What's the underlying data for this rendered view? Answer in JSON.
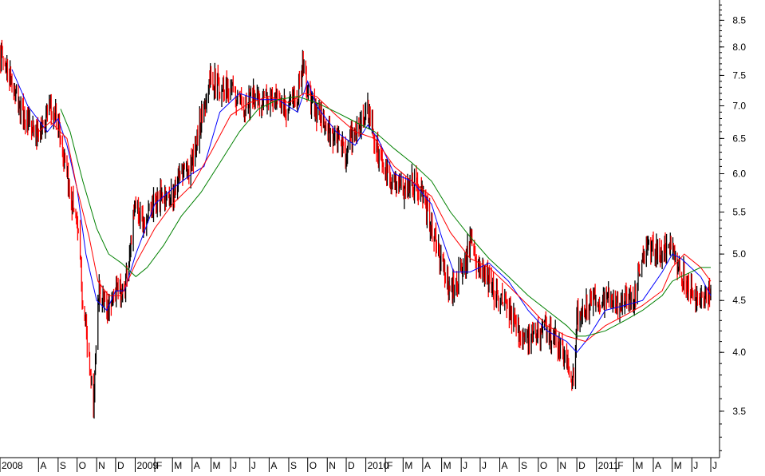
{
  "chart_data": {
    "type": "line",
    "title": "",
    "xlabel": "",
    "ylabel": "",
    "y_scale": "log",
    "ylim": [
      3.15,
      8.9
    ],
    "xlim": [
      "2008-06-01",
      "2011-07-06"
    ],
    "grid": false,
    "colors": {
      "price_up": "#000000",
      "price_down": "#ff0000",
      "ma_fast": "#0000ff",
      "ma_mid": "#ff0000",
      "ma_slow": "#008000",
      "axis": "#000000"
    },
    "y_ticks": [
      {
        "value": 3.5,
        "label": "3.5"
      },
      {
        "value": 4.0,
        "label": "4.0"
      },
      {
        "value": 4.5,
        "label": "4.5"
      },
      {
        "value": 5.0,
        "label": "5.0"
      },
      {
        "value": 5.5,
        "label": "5.5"
      },
      {
        "value": 6.0,
        "label": "6.0"
      },
      {
        "value": 6.5,
        "label": "6.5"
      },
      {
        "value": 7.0,
        "label": "7.0"
      },
      {
        "value": 7.5,
        "label": "7.5"
      },
      {
        "value": 8.0,
        "label": "8.0"
      },
      {
        "value": 8.5,
        "label": "8.5"
      }
    ],
    "x_ticks": [
      {
        "date": "2008-06-01",
        "label": "2008"
      },
      {
        "date": "2008-08-01",
        "label": "A"
      },
      {
        "date": "2008-09-01",
        "label": "S"
      },
      {
        "date": "2008-10-01",
        "label": "O"
      },
      {
        "date": "2008-11-01",
        "label": "N"
      },
      {
        "date": "2008-12-01",
        "label": "D"
      },
      {
        "date": "2009-01-01",
        "label": "2009"
      },
      {
        "date": "2009-02-01",
        "label": "F"
      },
      {
        "date": "2009-03-01",
        "label": "M"
      },
      {
        "date": "2009-04-01",
        "label": "A"
      },
      {
        "date": "2009-05-01",
        "label": "M"
      },
      {
        "date": "2009-06-01",
        "label": "J"
      },
      {
        "date": "2009-07-01",
        "label": "J"
      },
      {
        "date": "2009-08-01",
        "label": "A"
      },
      {
        "date": "2009-09-01",
        "label": "S"
      },
      {
        "date": "2009-10-01",
        "label": "O"
      },
      {
        "date": "2009-11-01",
        "label": "N"
      },
      {
        "date": "2009-12-01",
        "label": "D"
      },
      {
        "date": "2010-01-01",
        "label": "2010"
      },
      {
        "date": "2010-02-01",
        "label": "F"
      },
      {
        "date": "2010-03-01",
        "label": "M"
      },
      {
        "date": "2010-04-01",
        "label": "A"
      },
      {
        "date": "2010-05-01",
        "label": "M"
      },
      {
        "date": "2010-06-01",
        "label": "J"
      },
      {
        "date": "2010-07-01",
        "label": "J"
      },
      {
        "date": "2010-08-01",
        "label": "A"
      },
      {
        "date": "2010-09-01",
        "label": "S"
      },
      {
        "date": "2010-10-01",
        "label": "O"
      },
      {
        "date": "2010-11-01",
        "label": "N"
      },
      {
        "date": "2010-12-01",
        "label": "D"
      },
      {
        "date": "2011-01-01",
        "label": "2011"
      },
      {
        "date": "2011-02-01",
        "label": "F"
      },
      {
        "date": "2011-03-01",
        "label": "M"
      },
      {
        "date": "2011-04-01",
        "label": "A"
      },
      {
        "date": "2011-05-01",
        "label": "M"
      },
      {
        "date": "2011-06-01",
        "label": "J"
      },
      {
        "date": "2011-07-01",
        "label": "J"
      }
    ],
    "price_series": {
      "name": "",
      "style": "daily high-low bars, black on up days, red on down days",
      "x": [
        "2008-06-02",
        "2008-06-16",
        "2008-07-01",
        "2008-07-15",
        "2008-08-01",
        "2008-08-15",
        "2008-09-01",
        "2008-09-15",
        "2008-10-01",
        "2008-10-10",
        "2008-10-20",
        "2008-10-27",
        "2008-11-03",
        "2008-11-17",
        "2008-12-01",
        "2008-12-15",
        "2009-01-02",
        "2009-01-15",
        "2009-02-01",
        "2009-02-15",
        "2009-03-01",
        "2009-03-15",
        "2009-04-01",
        "2009-04-15",
        "2009-05-01",
        "2009-05-15",
        "2009-06-01",
        "2009-06-15",
        "2009-07-01",
        "2009-07-15",
        "2009-08-01",
        "2009-08-15",
        "2009-09-01",
        "2009-09-15",
        "2009-09-25",
        "2009-10-01",
        "2009-10-15",
        "2009-11-01",
        "2009-11-15",
        "2009-12-01",
        "2009-12-15",
        "2010-01-04",
        "2010-01-15",
        "2010-02-01",
        "2010-02-15",
        "2010-03-01",
        "2010-03-15",
        "2010-04-01",
        "2010-04-15",
        "2010-05-01",
        "2010-05-15",
        "2010-06-01",
        "2010-06-15",
        "2010-07-01",
        "2010-07-15",
        "2010-08-01",
        "2010-08-15",
        "2010-09-01",
        "2010-09-15",
        "2010-10-01",
        "2010-10-15",
        "2010-11-01",
        "2010-11-15",
        "2010-11-26",
        "2010-12-01",
        "2010-12-15",
        "2011-01-03",
        "2011-01-15",
        "2011-02-01",
        "2011-02-15",
        "2011-03-01",
        "2011-03-15",
        "2011-04-01",
        "2011-04-15",
        "2011-05-01",
        "2011-05-15",
        "2011-06-01",
        "2011-06-15",
        "2011-07-01"
      ],
      "close": [
        7.9,
        7.5,
        7.0,
        6.7,
        6.5,
        6.9,
        6.8,
        5.9,
        5.4,
        4.5,
        3.9,
        3.5,
        4.6,
        4.4,
        4.6,
        4.6,
        5.6,
        5.4,
        5.6,
        5.7,
        5.7,
        6.0,
        6.1,
        6.8,
        7.5,
        7.3,
        7.3,
        7.0,
        7.1,
        7.1,
        7.1,
        7.0,
        7.0,
        7.2,
        7.7,
        7.2,
        6.9,
        6.6,
        6.5,
        6.3,
        6.6,
        6.9,
        6.5,
        6.0,
        5.9,
        5.8,
        5.9,
        5.7,
        5.3,
        4.9,
        4.6,
        4.8,
        5.1,
        4.8,
        4.7,
        4.5,
        4.4,
        4.2,
        4.1,
        4.2,
        4.2,
        4.1,
        3.9,
        3.8,
        4.3,
        4.45,
        4.5,
        4.5,
        4.45,
        4.5,
        4.5,
        5.0,
        5.1,
        5.0,
        5.1,
        4.8,
        4.6,
        4.5,
        4.6
      ]
    },
    "series": [
      {
        "name": "",
        "color": "#0000ff",
        "x": [
          "2008-06-20",
          "2008-07-15",
          "2008-08-15",
          "2008-09-01",
          "2008-09-15",
          "2008-10-01",
          "2008-10-15",
          "2008-11-01",
          "2008-11-17",
          "2008-12-01",
          "2008-12-15",
          "2009-01-02",
          "2009-02-01",
          "2009-03-01",
          "2009-04-01",
          "2009-04-20",
          "2009-05-15",
          "2009-06-15",
          "2009-07-15",
          "2009-08-15",
          "2009-09-15",
          "2009-10-01",
          "2009-10-15",
          "2009-11-15",
          "2009-12-15",
          "2010-01-04",
          "2010-01-20",
          "2010-02-15",
          "2010-03-15",
          "2010-04-15",
          "2010-05-01",
          "2010-05-20",
          "2010-06-15",
          "2010-07-15",
          "2010-08-15",
          "2010-09-15",
          "2010-10-15",
          "2010-11-15",
          "2010-12-01",
          "2010-12-15",
          "2011-01-15",
          "2011-02-15",
          "2011-03-15",
          "2011-04-15",
          "2011-05-01",
          "2011-05-15",
          "2011-06-15",
          "2011-07-01"
        ],
        "values": [
          7.6,
          7.0,
          6.6,
          6.8,
          6.4,
          5.8,
          5.0,
          4.5,
          4.4,
          4.6,
          4.6,
          5.0,
          5.6,
          5.8,
          6.0,
          6.1,
          6.9,
          7.2,
          7.1,
          7.1,
          6.9,
          7.4,
          7.0,
          6.6,
          6.4,
          6.7,
          6.5,
          6.0,
          5.9,
          5.6,
          5.2,
          4.8,
          4.8,
          4.9,
          4.7,
          4.4,
          4.2,
          4.1,
          4.0,
          4.1,
          4.4,
          4.45,
          4.5,
          4.8,
          5.0,
          4.95,
          4.75,
          4.55
        ]
      },
      {
        "name": "",
        "color": "#ff0000",
        "x": [
          "2008-08-01",
          "2008-08-20",
          "2008-09-15",
          "2008-10-01",
          "2008-10-20",
          "2008-11-03",
          "2008-11-20",
          "2008-12-10",
          "2009-01-02",
          "2009-02-01",
          "2009-03-01",
          "2009-04-01",
          "2009-05-01",
          "2009-06-01",
          "2009-07-01",
          "2009-08-01",
          "2009-09-01",
          "2009-09-25",
          "2009-10-15",
          "2009-11-15",
          "2009-12-15",
          "2010-01-15",
          "2010-02-15",
          "2010-03-15",
          "2010-04-15",
          "2010-05-15",
          "2010-06-15",
          "2010-07-15",
          "2010-08-15",
          "2010-09-15",
          "2010-10-15",
          "2010-11-15",
          "2010-12-15",
          "2011-01-15",
          "2011-02-15",
          "2011-03-15",
          "2011-04-15",
          "2011-05-01",
          "2011-05-20",
          "2011-06-15",
          "2011-07-01"
        ],
        "values": [
          6.6,
          6.75,
          6.5,
          5.8,
          5.2,
          4.7,
          4.55,
          4.55,
          4.9,
          5.3,
          5.6,
          5.85,
          6.3,
          6.85,
          7.05,
          7.15,
          7.05,
          7.2,
          7.15,
          6.85,
          6.6,
          6.5,
          6.1,
          5.9,
          5.7,
          5.25,
          4.95,
          4.85,
          4.65,
          4.45,
          4.25,
          4.15,
          4.1,
          4.25,
          4.35,
          4.45,
          4.6,
          4.85,
          5.0,
          4.85,
          4.7
        ]
      },
      {
        "name": "",
        "color": "#008000",
        "x": [
          "2008-09-05",
          "2008-09-20",
          "2008-10-10",
          "2008-11-01",
          "2008-11-20",
          "2008-12-10",
          "2009-01-02",
          "2009-01-20",
          "2009-02-15",
          "2009-03-15",
          "2009-04-15",
          "2009-05-15",
          "2009-06-15",
          "2009-07-15",
          "2009-08-15",
          "2009-09-15",
          "2009-10-15",
          "2009-11-15",
          "2009-12-15",
          "2010-01-15",
          "2010-02-15",
          "2010-03-15",
          "2010-04-15",
          "2010-05-15",
          "2010-06-15",
          "2010-07-15",
          "2010-08-15",
          "2010-09-15",
          "2010-10-15",
          "2010-11-15",
          "2010-12-01",
          "2010-12-15",
          "2011-01-15",
          "2011-02-15",
          "2011-03-15",
          "2011-04-15",
          "2011-05-01",
          "2011-05-15",
          "2011-06-15",
          "2011-07-01"
        ],
        "values": [
          6.95,
          6.6,
          5.9,
          5.3,
          5.0,
          4.9,
          4.75,
          4.85,
          5.1,
          5.45,
          5.75,
          6.15,
          6.6,
          6.95,
          7.1,
          7.15,
          7.05,
          6.9,
          6.75,
          6.6,
          6.35,
          6.15,
          5.9,
          5.5,
          5.2,
          4.95,
          4.75,
          4.55,
          4.4,
          4.25,
          4.15,
          4.15,
          4.2,
          4.3,
          4.4,
          4.55,
          4.7,
          4.75,
          4.85,
          4.85
        ]
      }
    ]
  }
}
